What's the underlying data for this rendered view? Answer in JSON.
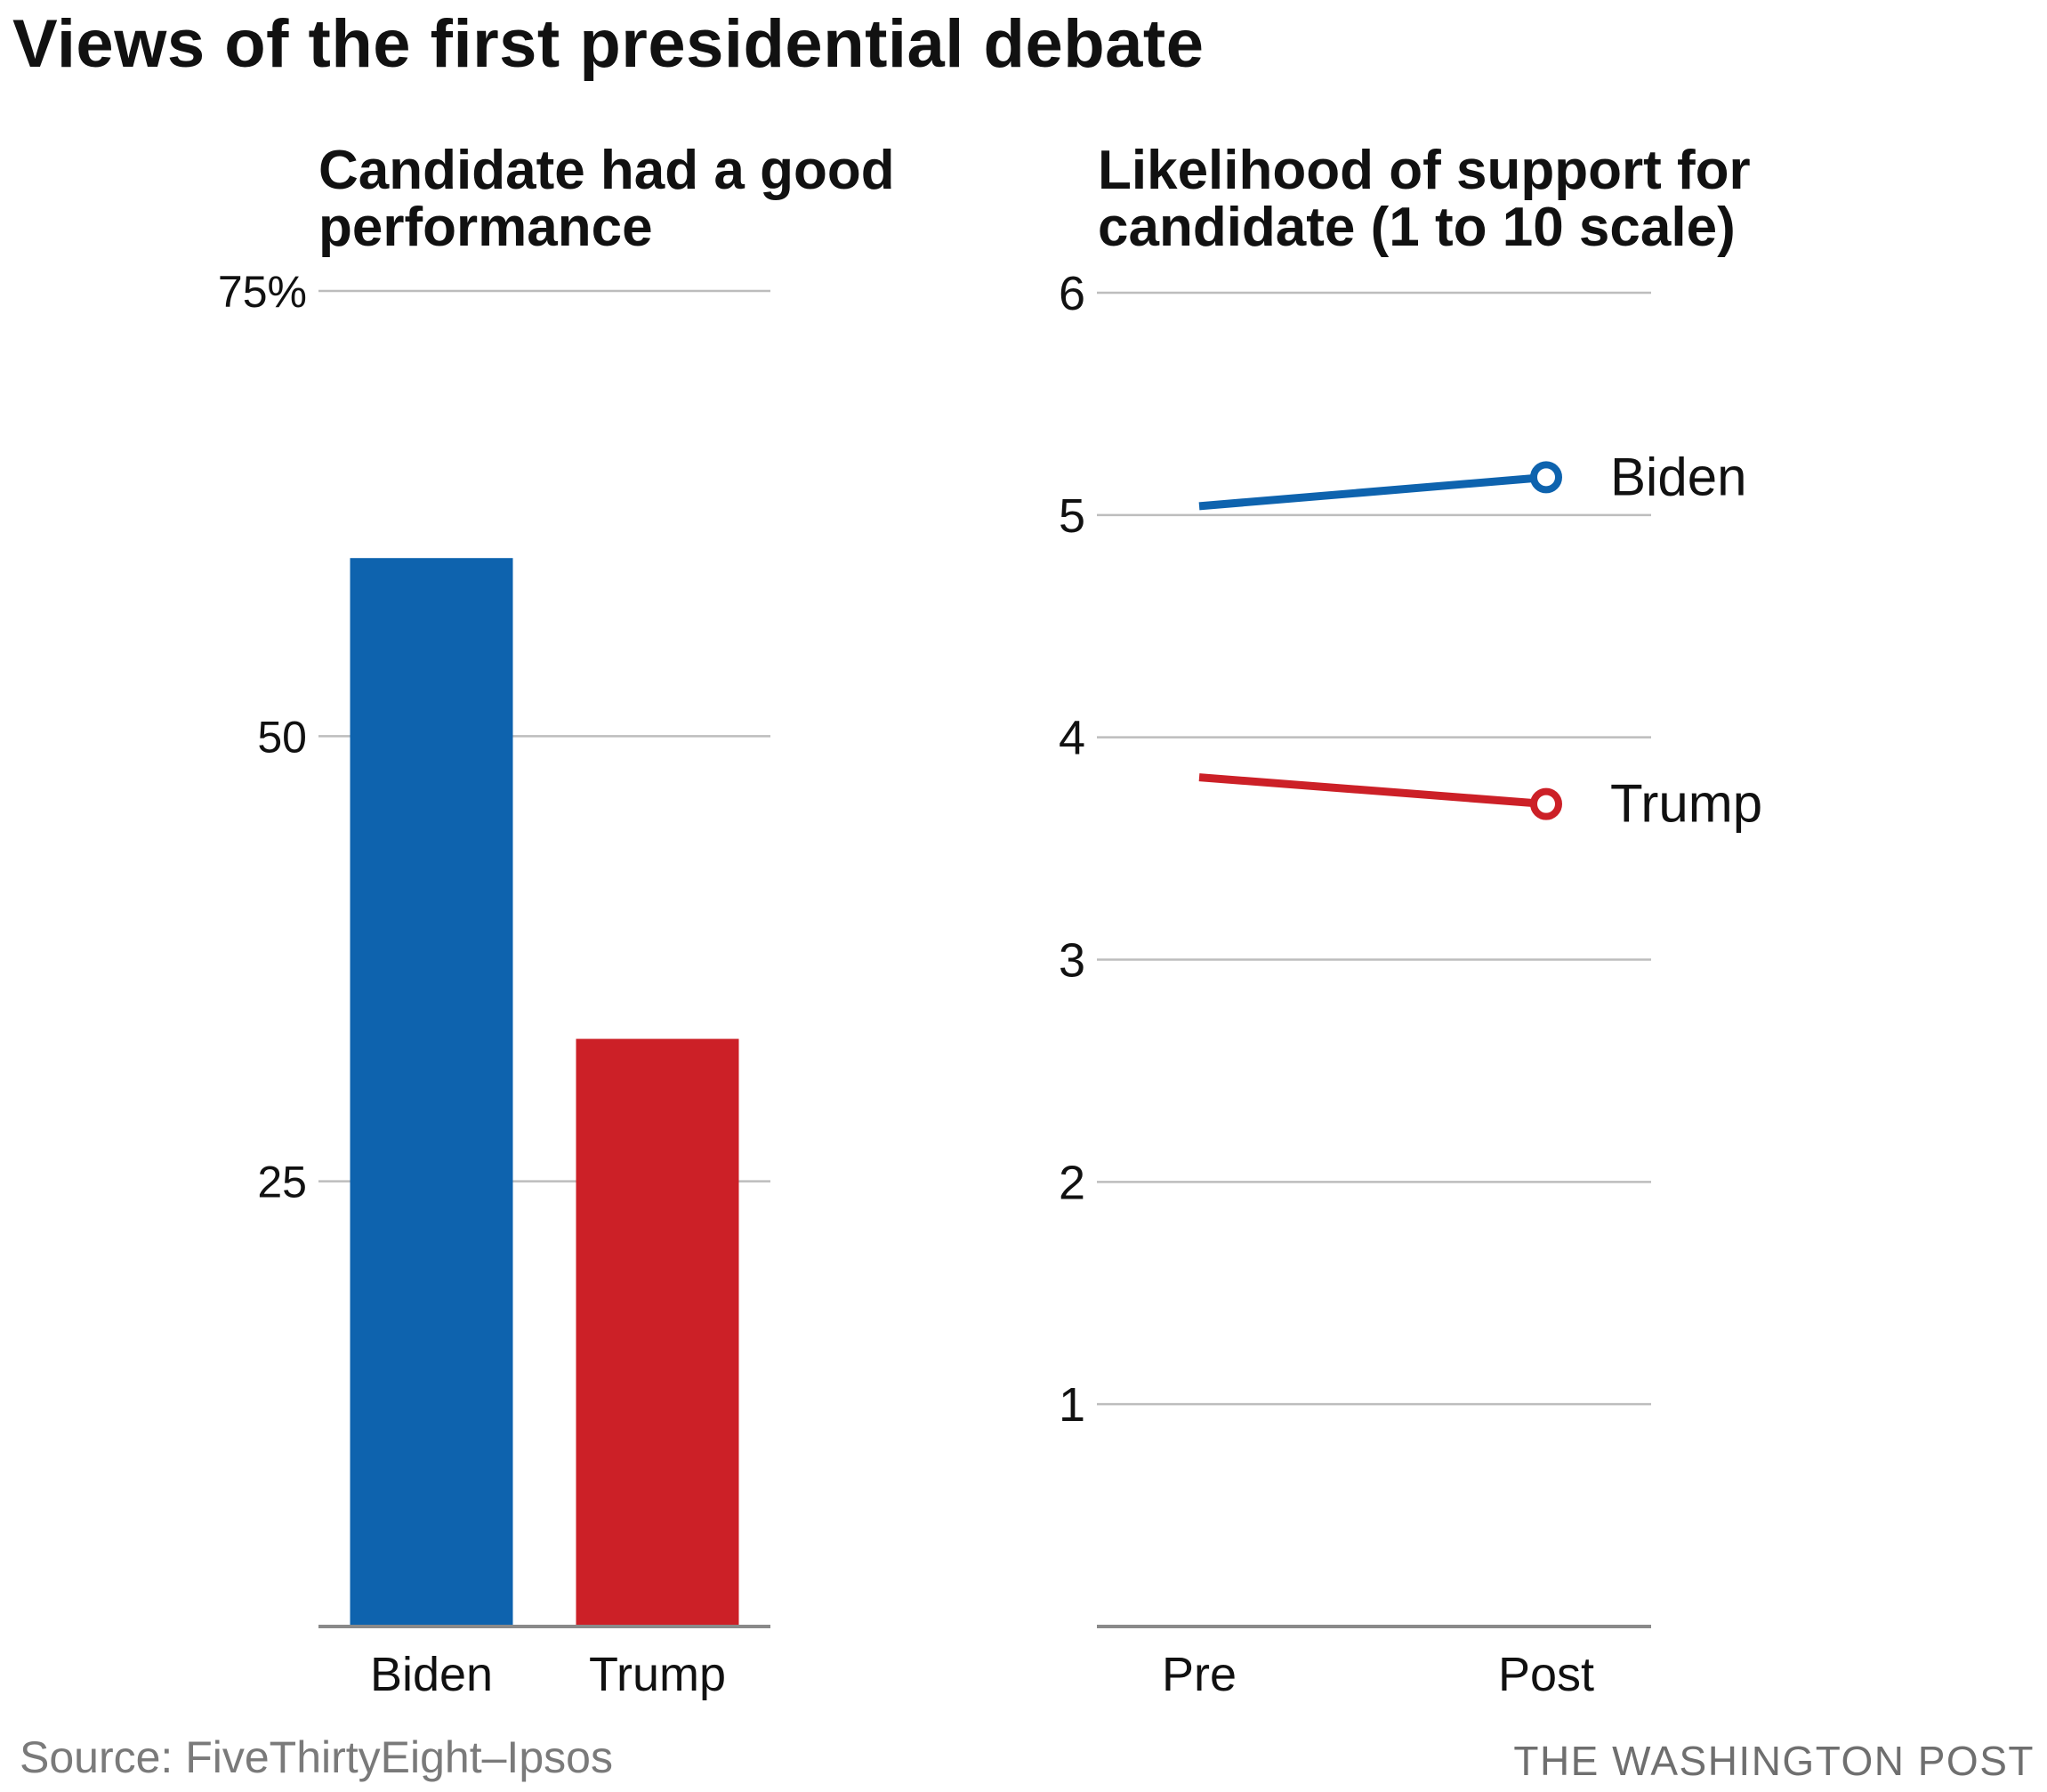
{
  "title": "Views of the first presidential debate",
  "source": "Source: FiveThirtyEight–Ipsos",
  "credit": "THE WASHINGTON POST",
  "colors": {
    "biden": "#0e63ae",
    "trump": "#cc2027",
    "grid": "#bdbdbd",
    "baseline": "#8a8a8a"
  },
  "chart_data": [
    {
      "type": "bar",
      "title": "Candidate had a good performance",
      "categories": [
        "Biden",
        "Trump"
      ],
      "values": [
        60,
        33
      ],
      "colors": [
        "#0e63ae",
        "#cc2027"
      ],
      "ylim": [
        0,
        75
      ],
      "yticks": [
        25,
        50,
        75
      ],
      "ytick_labels": [
        "25",
        "50",
        "75%"
      ],
      "grid": true
    },
    {
      "type": "line",
      "title": "Likelihood of support for candidate (1 to 10 scale)",
      "x": [
        "Pre",
        "Post"
      ],
      "ylim": [
        0,
        6
      ],
      "yticks": [
        1,
        2,
        3,
        4,
        5,
        6
      ],
      "ytick_labels": [
        "1",
        "2",
        "3",
        "4",
        "5",
        "6"
      ],
      "grid": true,
      "series": [
        {
          "name": "Biden",
          "values": [
            5.04,
            5.17
          ],
          "color": "#0e63ae"
        },
        {
          "name": "Trump",
          "values": [
            3.82,
            3.7
          ],
          "color": "#cc2027"
        }
      ]
    }
  ]
}
